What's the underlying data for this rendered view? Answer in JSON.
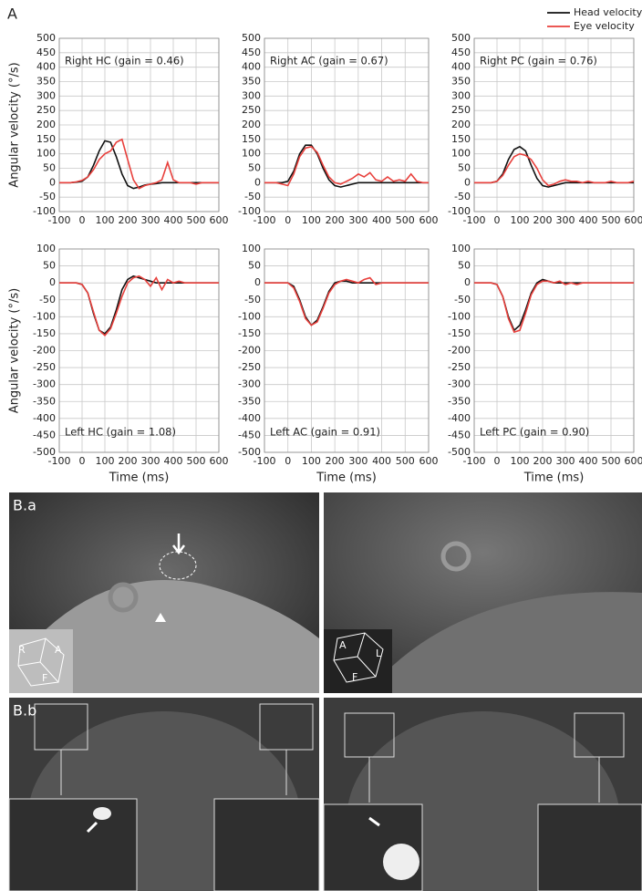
{
  "panel_labels": {
    "a": "A",
    "ba": "B.a",
    "bb": "B.b"
  },
  "chart_data": [
    {
      "type": "line",
      "title": "Right HC (gain = 0.46)",
      "ylabel": "Angular velocity (°/s)",
      "x": [
        -100,
        -75,
        -50,
        -25,
        0,
        25,
        50,
        75,
        100,
        125,
        150,
        175,
        200,
        225,
        250,
        275,
        300,
        325,
        350,
        375,
        400,
        425,
        450,
        475,
        500,
        525,
        550,
        575,
        600
      ],
      "series": [
        {
          "name": "Head velocity",
          "color": "#111111",
          "values": [
            0,
            0,
            0,
            2,
            5,
            20,
            60,
            110,
            145,
            140,
            90,
            30,
            -10,
            -20,
            -15,
            -8,
            -5,
            -3,
            0,
            0,
            0,
            0,
            0,
            0,
            0,
            0,
            0,
            0,
            0
          ]
        },
        {
          "name": "Eye velocity",
          "color": "#e8403c",
          "values": [
            0,
            0,
            0,
            3,
            8,
            20,
            45,
            80,
            100,
            110,
            140,
            150,
            80,
            10,
            -20,
            -10,
            -5,
            0,
            10,
            70,
            10,
            0,
            0,
            0,
            -5,
            0,
            0,
            0,
            0
          ]
        }
      ],
      "xlim": [
        -100,
        600
      ],
      "xticks": [
        -100,
        0,
        100,
        200,
        300,
        400,
        500,
        600
      ],
      "ylim": [
        -100,
        500
      ],
      "yticks": [
        -100,
        -50,
        0,
        50,
        100,
        150,
        200,
        250,
        300,
        350,
        400,
        450,
        500
      ],
      "grid": true
    },
    {
      "type": "line",
      "title": "Right AC (gain = 0.67)",
      "x": [
        -100,
        -75,
        -50,
        -25,
        0,
        25,
        50,
        75,
        100,
        125,
        150,
        175,
        200,
        225,
        250,
        275,
        300,
        325,
        350,
        375,
        400,
        425,
        450,
        475,
        500,
        525,
        550,
        575,
        600
      ],
      "series": [
        {
          "color": "#111111",
          "values": [
            0,
            0,
            0,
            0,
            5,
            40,
            100,
            130,
            130,
            100,
            50,
            10,
            -10,
            -15,
            -10,
            -5,
            0,
            0,
            0,
            0,
            0,
            0,
            0,
            0,
            0,
            0,
            0,
            0,
            0
          ]
        },
        {
          "color": "#e8403c",
          "values": [
            0,
            0,
            0,
            -5,
            -10,
            30,
            90,
            120,
            125,
            105,
            60,
            20,
            0,
            -5,
            5,
            15,
            30,
            20,
            35,
            10,
            5,
            20,
            5,
            10,
            5,
            30,
            5,
            0,
            0
          ]
        }
      ],
      "xlim": [
        -100,
        600
      ],
      "xticks": [
        -100,
        0,
        100,
        200,
        300,
        400,
        500,
        600
      ],
      "ylim": [
        -100,
        500
      ],
      "yticks": [
        -100,
        -50,
        0,
        50,
        100,
        150,
        200,
        250,
        300,
        350,
        400,
        450,
        500
      ],
      "grid": true
    },
    {
      "type": "line",
      "title": "Right PC (gain = 0.76)",
      "x": [
        -100,
        -75,
        -50,
        -25,
        0,
        25,
        50,
        75,
        100,
        125,
        150,
        175,
        200,
        225,
        250,
        275,
        300,
        325,
        350,
        375,
        400,
        425,
        450,
        475,
        500,
        525,
        550,
        575,
        600
      ],
      "series": [
        {
          "color": "#111111",
          "values": [
            0,
            0,
            0,
            0,
            5,
            30,
            80,
            115,
            125,
            110,
            60,
            15,
            -10,
            -15,
            -10,
            -5,
            0,
            0,
            0,
            0,
            0,
            0,
            0,
            0,
            0,
            0,
            0,
            0,
            0
          ]
        },
        {
          "color": "#e8403c",
          "values": [
            0,
            0,
            0,
            0,
            5,
            25,
            60,
            90,
            100,
            95,
            80,
            50,
            10,
            -10,
            -5,
            5,
            10,
            5,
            5,
            0,
            5,
            0,
            0,
            0,
            5,
            0,
            0,
            0,
            5
          ]
        }
      ],
      "xlim": [
        -100,
        600
      ],
      "xticks": [
        -100,
        0,
        100,
        200,
        300,
        400,
        500,
        600
      ],
      "ylim": [
        -100,
        500
      ],
      "yticks": [
        -100,
        -50,
        0,
        50,
        100,
        150,
        200,
        250,
        300,
        350,
        400,
        450,
        500
      ],
      "grid": true
    },
    {
      "type": "line",
      "title": "Left HC (gain = 1.08)",
      "ylabel": "Angular velocity (°/s)",
      "xlabel": "Time (ms)",
      "x": [
        -100,
        -75,
        -50,
        -25,
        0,
        25,
        50,
        75,
        100,
        125,
        150,
        175,
        200,
        225,
        250,
        275,
        300,
        325,
        350,
        375,
        400,
        425,
        450,
        475,
        500,
        525,
        550,
        575,
        600
      ],
      "series": [
        {
          "color": "#111111",
          "values": [
            0,
            0,
            0,
            0,
            -5,
            -30,
            -90,
            -140,
            -150,
            -130,
            -80,
            -20,
            10,
            20,
            15,
            10,
            5,
            0,
            0,
            0,
            0,
            0,
            0,
            0,
            0,
            0,
            0,
            0,
            0
          ]
        },
        {
          "color": "#e8403c",
          "values": [
            0,
            0,
            0,
            0,
            -5,
            -30,
            -85,
            -140,
            -155,
            -135,
            -90,
            -40,
            0,
            15,
            20,
            10,
            -10,
            15,
            -20,
            10,
            0,
            5,
            0,
            0,
            0,
            0,
            0,
            0,
            0
          ]
        }
      ],
      "xlim": [
        -100,
        600
      ],
      "xticks": [
        -100,
        0,
        100,
        200,
        300,
        400,
        500,
        600
      ],
      "ylim": [
        -500,
        100
      ],
      "yticks": [
        -500,
        -450,
        -400,
        -350,
        -300,
        -250,
        -200,
        -150,
        -100,
        -50,
        0,
        50,
        100
      ],
      "grid": true
    },
    {
      "type": "line",
      "title": "Left AC (gain = 0.91)",
      "xlabel": "Time (ms)",
      "x": [
        -100,
        -75,
        -50,
        -25,
        0,
        25,
        50,
        75,
        100,
        125,
        150,
        175,
        200,
        225,
        250,
        275,
        300,
        325,
        350,
        375,
        400,
        425,
        450,
        475,
        500,
        525,
        550,
        575,
        600
      ],
      "series": [
        {
          "color": "#111111",
          "values": [
            0,
            0,
            0,
            0,
            0,
            -10,
            -50,
            -100,
            -125,
            -110,
            -70,
            -25,
            0,
            5,
            5,
            0,
            0,
            0,
            0,
            0,
            0,
            0,
            0,
            0,
            0,
            0,
            0,
            0,
            0
          ]
        },
        {
          "color": "#e8403c",
          "values": [
            0,
            0,
            0,
            0,
            0,
            -15,
            -55,
            -105,
            -125,
            -115,
            -75,
            -30,
            -5,
            5,
            10,
            5,
            0,
            10,
            15,
            -5,
            0,
            0,
            0,
            0,
            0,
            0,
            0,
            0,
            0
          ]
        }
      ],
      "xlim": [
        -100,
        600
      ],
      "xticks": [
        -100,
        0,
        100,
        200,
        300,
        400,
        500,
        600
      ],
      "ylim": [
        -500,
        100
      ],
      "yticks": [
        -500,
        -450,
        -400,
        -350,
        -300,
        -250,
        -200,
        -150,
        -100,
        -50,
        0,
        50,
        100
      ],
      "grid": true
    },
    {
      "type": "line",
      "title": "Left PC (gain = 0.90)",
      "xlabel": "Time (ms)",
      "x": [
        -100,
        -75,
        -50,
        -25,
        0,
        25,
        50,
        75,
        100,
        125,
        150,
        175,
        200,
        225,
        250,
        275,
        300,
        325,
        350,
        375,
        400,
        425,
        450,
        475,
        500,
        525,
        550,
        575,
        600
      ],
      "series": [
        {
          "color": "#111111",
          "values": [
            0,
            0,
            0,
            0,
            -5,
            -40,
            -100,
            -140,
            -125,
            -80,
            -30,
            0,
            10,
            5,
            0,
            0,
            0,
            0,
            0,
            0,
            0,
            0,
            0,
            0,
            0,
            0,
            0,
            0,
            0
          ]
        },
        {
          "color": "#e8403c",
          "values": [
            0,
            0,
            0,
            0,
            -5,
            -40,
            -105,
            -145,
            -140,
            -90,
            -35,
            -5,
            5,
            5,
            0,
            5,
            -5,
            0,
            -5,
            0,
            0,
            0,
            0,
            0,
            0,
            0,
            0,
            0,
            0
          ]
        }
      ],
      "xlim": [
        -100,
        600
      ],
      "xticks": [
        -100,
        0,
        100,
        200,
        300,
        400,
        500,
        600
      ],
      "ylim": [
        -500,
        100
      ],
      "yticks": [
        -500,
        -450,
        -400,
        -350,
        -300,
        -250,
        -200,
        -150,
        -100,
        -50,
        0,
        50,
        100
      ],
      "grid": true
    }
  ],
  "images": {
    "cube_left": [
      "R",
      "A",
      "F"
    ],
    "cube_right": [
      "A",
      "L",
      "F"
    ]
  }
}
